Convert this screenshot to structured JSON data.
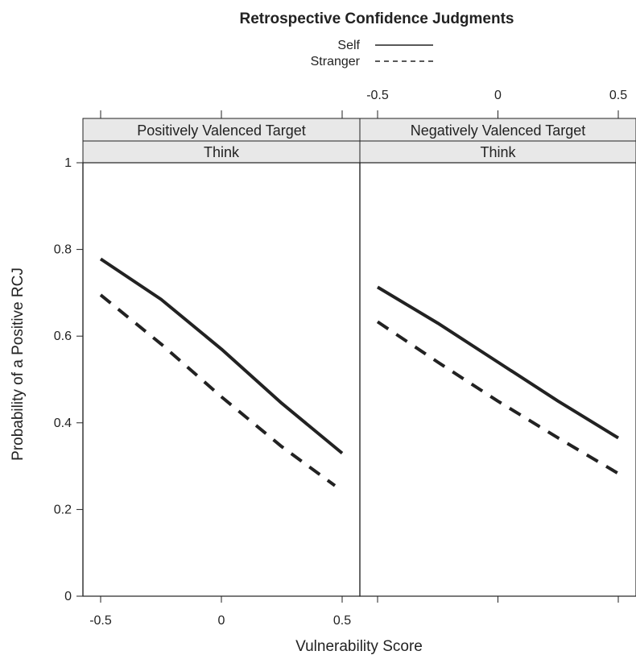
{
  "chart_data": {
    "type": "line",
    "title": "Retrospective Confidence Judgments",
    "xlabel": "Vulnerability Score",
    "ylabel": "Probability of a Positive RCJ",
    "xlim": [
      -0.5,
      0.5
    ],
    "ylim": [
      0,
      1
    ],
    "x_ticks": [
      "-0.5",
      "0",
      "0.5"
    ],
    "y_ticks": [
      "0",
      "0.2",
      "0.4",
      "0.6",
      "0.8",
      "1"
    ],
    "legend": {
      "placement": "top",
      "entries": [
        {
          "name": "Self",
          "line_style": "solid"
        },
        {
          "name": "Stranger",
          "line_style": "dashed"
        }
      ]
    },
    "panels": [
      {
        "strip_top": "Positively Valenced Target",
        "strip_bottom": "Think",
        "series": [
          {
            "name": "Self",
            "x": [
              -0.5,
              -0.25,
              0,
              0.25,
              0.5
            ],
            "values": [
              0.778,
              0.685,
              0.57,
              0.445,
              0.33
            ]
          },
          {
            "name": "Stranger",
            "x": [
              -0.5,
              -0.25,
              0,
              0.25,
              0.47
            ],
            "values": [
              0.695,
              0.582,
              0.46,
              0.345,
              0.255
            ]
          }
        ]
      },
      {
        "strip_top": "Negatively Valenced Target",
        "strip_bottom": "Think",
        "series": [
          {
            "name": "Self",
            "x": [
              -0.5,
              -0.25,
              0,
              0.25,
              0.5
            ],
            "values": [
              0.713,
              0.63,
              0.54,
              0.45,
              0.365
            ]
          },
          {
            "name": "Stranger",
            "x": [
              -0.5,
              -0.25,
              0,
              0.25,
              0.5
            ],
            "values": [
              0.633,
              0.54,
              0.45,
              0.365,
              0.283
            ]
          }
        ]
      }
    ]
  }
}
